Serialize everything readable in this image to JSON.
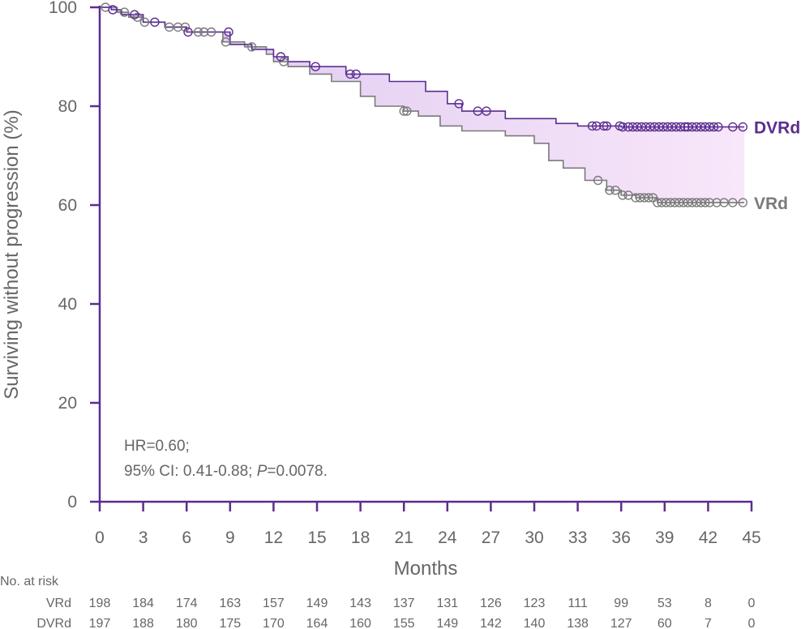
{
  "chart_data": {
    "type": "line",
    "xlabel": "Months",
    "ylabel": "Surviving without progression (%)",
    "xlim": [
      0,
      45
    ],
    "ylim": [
      0,
      100
    ],
    "xticks": [
      "0",
      "3",
      "6",
      "9",
      "12",
      "15",
      "18",
      "21",
      "24",
      "27",
      "30",
      "33",
      "36",
      "39",
      "42",
      "45"
    ],
    "yticks": [
      "0",
      "20",
      "40",
      "60",
      "80",
      "100"
    ],
    "grid": false,
    "fill_between_series": true,
    "colors": {
      "DVRd": "#5b2d90",
      "VRd": "#7a7a7a",
      "axis": "#5b2d90",
      "fill_start": "#dcc8ef",
      "fill_end": "#f8e6fa"
    },
    "series": [
      {
        "name": "DVRd",
        "points": [
          [
            0,
            100
          ],
          [
            0.8,
            100
          ],
          [
            0.8,
            99.5
          ],
          [
            1.5,
            99.5
          ],
          [
            1.5,
            98.5
          ],
          [
            3,
            98.5
          ],
          [
            3,
            97
          ],
          [
            4.5,
            97
          ],
          [
            4.5,
            96
          ],
          [
            6,
            96
          ],
          [
            6,
            95
          ],
          [
            9,
            95
          ],
          [
            9,
            92.5
          ],
          [
            10.5,
            92.5
          ],
          [
            10.5,
            91.5
          ],
          [
            12,
            91.5
          ],
          [
            12,
            90
          ],
          [
            13,
            90
          ],
          [
            13,
            89
          ],
          [
            14.5,
            89
          ],
          [
            14.5,
            88
          ],
          [
            17,
            88
          ],
          [
            17,
            86.5
          ],
          [
            20,
            86.5
          ],
          [
            20,
            85
          ],
          [
            22.5,
            85
          ],
          [
            22.5,
            83
          ],
          [
            24,
            83
          ],
          [
            24,
            80.5
          ],
          [
            25,
            80.5
          ],
          [
            25,
            79
          ],
          [
            28,
            79
          ],
          [
            28,
            77.5
          ],
          [
            31.5,
            77.5
          ],
          [
            31.5,
            76.5
          ],
          [
            33,
            76.5
          ],
          [
            33,
            76
          ],
          [
            36,
            76
          ],
          [
            36,
            75.8
          ],
          [
            44.5,
            75.8
          ]
        ],
        "censor_x": [
          0.9,
          2.4,
          3.8,
          6.1,
          8.9,
          12.5,
          14.9,
          17.3,
          17.7,
          24.8,
          26.1,
          26.7,
          34.0,
          34.3,
          34.8,
          35.0,
          35.9,
          36.1,
          36.5,
          36.8,
          37.1,
          37.4,
          37.7,
          38.0,
          38.3,
          38.6,
          38.9,
          39.2,
          39.5,
          39.8,
          40.1,
          40.4,
          40.6,
          40.9,
          41.2,
          41.5,
          41.8,
          42.1,
          42.4,
          42.7,
          43.7,
          44.4
        ]
      },
      {
        "name": "VRd",
        "points": [
          [
            0,
            100
          ],
          [
            1.2,
            100
          ],
          [
            1.2,
            99
          ],
          [
            2,
            99
          ],
          [
            2,
            98
          ],
          [
            3,
            98
          ],
          [
            3,
            97
          ],
          [
            4.5,
            97
          ],
          [
            4.5,
            96
          ],
          [
            6,
            96
          ],
          [
            6,
            95
          ],
          [
            8.5,
            95
          ],
          [
            8.5,
            93
          ],
          [
            10,
            93
          ],
          [
            10,
            92
          ],
          [
            11.5,
            92
          ],
          [
            11.5,
            90.5
          ],
          [
            12,
            90.5
          ],
          [
            12,
            89
          ],
          [
            13,
            89
          ],
          [
            13,
            88
          ],
          [
            14.5,
            88
          ],
          [
            14.5,
            86.5
          ],
          [
            16,
            86.5
          ],
          [
            16,
            85
          ],
          [
            18,
            85
          ],
          [
            18,
            82
          ],
          [
            19,
            82
          ],
          [
            19,
            80
          ],
          [
            21,
            80
          ],
          [
            21,
            79
          ],
          [
            22,
            79
          ],
          [
            22,
            78
          ],
          [
            23.5,
            78
          ],
          [
            23.5,
            76
          ],
          [
            25,
            76
          ],
          [
            25,
            75
          ],
          [
            28,
            75
          ],
          [
            28,
            74
          ],
          [
            30,
            74
          ],
          [
            30,
            72.5
          ],
          [
            31,
            72.5
          ],
          [
            31,
            69
          ],
          [
            32,
            69
          ],
          [
            32,
            67.5
          ],
          [
            33.5,
            67.5
          ],
          [
            33.5,
            65
          ],
          [
            35,
            65
          ],
          [
            35,
            63
          ],
          [
            36,
            63
          ],
          [
            36,
            62
          ],
          [
            37,
            62
          ],
          [
            37,
            61.5
          ],
          [
            38.5,
            61.5
          ],
          [
            38.5,
            60.5
          ],
          [
            44.5,
            60.5
          ]
        ],
        "censor_x": [
          0.4,
          1.7,
          2.6,
          3.1,
          4.8,
          5.4,
          5.9,
          6.8,
          7.2,
          7.7,
          8.7,
          10.5,
          12.7,
          21.0,
          21.2,
          34.4,
          35.2,
          35.6,
          36.1,
          36.5,
          37.0,
          37.3,
          37.6,
          37.9,
          38.2,
          38.5,
          38.8,
          39.1,
          39.4,
          39.7,
          40.0,
          40.3,
          40.6,
          40.9,
          41.2,
          41.5,
          41.8,
          42.1,
          42.6,
          43.1,
          43.7,
          44.4
        ]
      }
    ],
    "series_labels": [
      "DVRd",
      "VRd"
    ],
    "annotation": {
      "line1": "HR=0.60;",
      "line2_prefix": "95% CI: 0.41-0.88; ",
      "line2_p": "P",
      "line2_suffix": "=0.0078."
    },
    "risk_table": {
      "title": "No. at risk",
      "rows": [
        {
          "label": "VRd",
          "values": [
            "198",
            "184",
            "174",
            "163",
            "157",
            "149",
            "143",
            "137",
            "131",
            "126",
            "123",
            "111",
            "99",
            "53",
            "8",
            "0"
          ]
        },
        {
          "label": "DVRd",
          "values": [
            "197",
            "188",
            "180",
            "175",
            "170",
            "164",
            "160",
            "155",
            "149",
            "142",
            "140",
            "138",
            "127",
            "60",
            "7",
            "0"
          ]
        }
      ]
    }
  }
}
